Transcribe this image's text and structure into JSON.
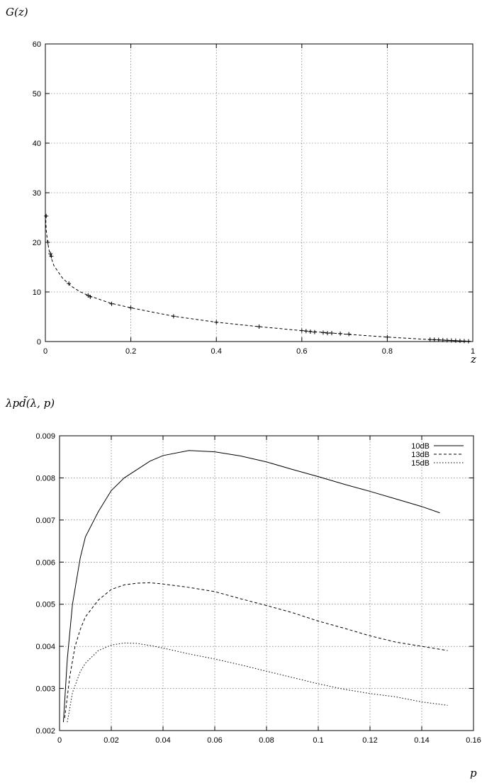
{
  "chart_data": [
    {
      "type": "line",
      "title": "",
      "ylabel": "G(z)",
      "xlabel": "z",
      "xlim": [
        0,
        1
      ],
      "ylim": [
        0,
        60
      ],
      "xticks": [
        "0",
        "0.2",
        "0.4",
        "0.6",
        "0.8",
        "1"
      ],
      "xtick_values": [
        0,
        0.2,
        0.4,
        0.6,
        0.8,
        1.0
      ],
      "yticks": [
        "0",
        "10",
        "20",
        "30",
        "40",
        "50",
        "60"
      ],
      "ytick_values": [
        0,
        10,
        20,
        30,
        40,
        50,
        60
      ],
      "grid": true,
      "series": [
        {
          "style": "dashed",
          "x": [
            0.0005,
            0.002,
            0.005,
            0.01,
            0.02,
            0.04,
            0.06,
            0.08,
            0.1,
            0.15,
            0.2,
            0.3,
            0.4,
            0.5,
            0.6,
            0.7,
            0.8,
            0.9,
            0.95,
            0.98,
            1.0
          ],
          "y": [
            25.5,
            22.5,
            20.2,
            17.8,
            15.3,
            12.8,
            11.2,
            10.1,
            9.3,
            7.8,
            6.8,
            5.1,
            3.9,
            3.0,
            2.2,
            1.5,
            0.9,
            0.4,
            0.2,
            0.08,
            0.0
          ]
        },
        {
          "style": "points",
          "x": [
            0.002,
            0.006,
            0.012,
            0.014,
            0.055,
            0.1,
            0.105,
            0.155,
            0.2,
            0.3,
            0.4,
            0.5,
            0.6,
            0.61,
            0.62,
            0.63,
            0.65,
            0.66,
            0.67,
            0.69,
            0.71,
            0.8,
            0.9,
            0.91,
            0.92,
            0.93,
            0.94,
            0.95,
            0.96,
            0.97,
            0.98,
            0.99
          ],
          "y": [
            25.3,
            20.0,
            17.7,
            17.2,
            11.7,
            9.3,
            9.0,
            7.6,
            6.8,
            5.1,
            3.9,
            3.0,
            2.2,
            2.1,
            2.0,
            1.9,
            1.8,
            1.7,
            1.7,
            1.6,
            1.5,
            0.9,
            0.4,
            0.38,
            0.35,
            0.3,
            0.25,
            0.22,
            0.18,
            0.14,
            0.1,
            0.05
          ]
        }
      ]
    },
    {
      "type": "line",
      "title": "",
      "ylabel": "λpd̃(λ, p)",
      "xlabel": "p",
      "xlim": [
        0,
        0.16
      ],
      "ylim": [
        0.002,
        0.009
      ],
      "xticks": [
        "0",
        "0.02",
        "0.04",
        "0.06",
        "0.08",
        "0.1",
        "0.12",
        "0.14",
        "0.16"
      ],
      "xtick_values": [
        0,
        0.02,
        0.04,
        0.06,
        0.08,
        0.1,
        0.12,
        0.14,
        0.16
      ],
      "yticks": [
        "0.002",
        "0.003",
        "0.004",
        "0.005",
        "0.006",
        "0.007",
        "0.008",
        "0.009"
      ],
      "ytick_values": [
        0.002,
        0.003,
        0.004,
        0.005,
        0.006,
        0.007,
        0.008,
        0.009
      ],
      "grid": true,
      "legend_position": "top-right",
      "series": [
        {
          "name": "10dB",
          "style": "solid",
          "x": [
            0.0015,
            0.003,
            0.005,
            0.008,
            0.01,
            0.015,
            0.02,
            0.025,
            0.03,
            0.035,
            0.04,
            0.05,
            0.06,
            0.07,
            0.08,
            0.09,
            0.1,
            0.11,
            0.12,
            0.13,
            0.14,
            0.147
          ],
          "y": [
            0.0022,
            0.0037,
            0.005,
            0.0061,
            0.0066,
            0.0072,
            0.0077,
            0.008,
            0.0082,
            0.0084,
            0.00853,
            0.00865,
            0.00862,
            0.00852,
            0.00838,
            0.0082,
            0.00803,
            0.00785,
            0.00768,
            0.0075,
            0.00732,
            0.00717
          ]
        },
        {
          "name": "13dB",
          "style": "dashed",
          "x": [
            0.002,
            0.004,
            0.006,
            0.008,
            0.01,
            0.015,
            0.02,
            0.025,
            0.03,
            0.035,
            0.04,
            0.05,
            0.06,
            0.07,
            0.08,
            0.09,
            0.1,
            0.11,
            0.12,
            0.13,
            0.14,
            0.15
          ],
          "y": [
            0.0023,
            0.0033,
            0.004,
            0.0044,
            0.0047,
            0.0051,
            0.00535,
            0.00546,
            0.0055,
            0.00551,
            0.00548,
            0.0054,
            0.0053,
            0.00513,
            0.00497,
            0.0048,
            0.0046,
            0.00443,
            0.00425,
            0.0041,
            0.004,
            0.0039
          ]
        },
        {
          "name": "15dB",
          "style": "dotted",
          "x": [
            0.003,
            0.005,
            0.008,
            0.01,
            0.015,
            0.02,
            0.025,
            0.03,
            0.035,
            0.04,
            0.05,
            0.06,
            0.07,
            0.08,
            0.09,
            0.1,
            0.11,
            0.12,
            0.13,
            0.14,
            0.15
          ],
          "y": [
            0.0022,
            0.0029,
            0.0034,
            0.0036,
            0.0039,
            0.00403,
            0.00408,
            0.00407,
            0.00402,
            0.00396,
            0.00382,
            0.0037,
            0.00356,
            0.00341,
            0.00326,
            0.00311,
            0.00298,
            0.00288,
            0.0028,
            0.00268,
            0.0026
          ]
        }
      ]
    }
  ]
}
